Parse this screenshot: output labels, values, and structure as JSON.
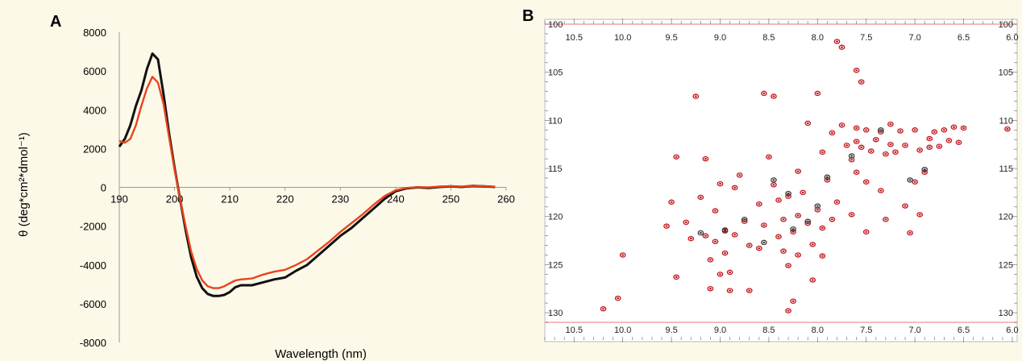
{
  "chart_data": [
    {
      "panel": "A",
      "type": "line",
      "xlabel": "Wavelength (nm)",
      "ylabel": "θ (deg*cm²*dmol⁻¹)",
      "xlim": [
        190,
        260
      ],
      "ylim": [
        -8000,
        8000
      ],
      "x_ticks": [
        "190",
        "200",
        "210",
        "220",
        "230",
        "240",
        "250",
        "260"
      ],
      "y_ticks": [
        "8000",
        "6000",
        "4000",
        "2000",
        "0",
        "-2000",
        "-4000",
        "-6000",
        "-8000"
      ],
      "series": [
        {
          "color": "#111111",
          "points": [
            [
              190,
              2100
            ],
            [
              191,
              2500
            ],
            [
              192,
              3200
            ],
            [
              193,
              4200
            ],
            [
              194,
              5000
            ],
            [
              195,
              6100
            ],
            [
              196,
              6900
            ],
            [
              197,
              6600
            ],
            [
              198,
              4800
            ],
            [
              199,
              2800
            ],
            [
              200,
              1000
            ],
            [
              201,
              -600
            ],
            [
              202,
              -2200
            ],
            [
              203,
              -3600
            ],
            [
              204,
              -4600
            ],
            [
              205,
              -5200
            ],
            [
              206,
              -5500
            ],
            [
              207,
              -5600
            ],
            [
              208,
              -5600
            ],
            [
              209,
              -5550
            ],
            [
              210,
              -5400
            ],
            [
              211,
              -5150
            ],
            [
              212,
              -5050
            ],
            [
              214,
              -5050
            ],
            [
              216,
              -4900
            ],
            [
              218,
              -4750
            ],
            [
              220,
              -4650
            ],
            [
              222,
              -4300
            ],
            [
              224,
              -4000
            ],
            [
              226,
              -3500
            ],
            [
              228,
              -3000
            ],
            [
              230,
              -2500
            ],
            [
              232,
              -2100
            ],
            [
              234,
              -1600
            ],
            [
              236,
              -1100
            ],
            [
              238,
              -600
            ],
            [
              240,
              -200
            ],
            [
              242,
              -50
            ],
            [
              244,
              0
            ],
            [
              246,
              -30
            ],
            [
              248,
              20
            ],
            [
              250,
              50
            ],
            [
              252,
              20
            ],
            [
              254,
              80
            ],
            [
              256,
              50
            ],
            [
              258,
              20
            ]
          ]
        },
        {
          "color": "#e8431d",
          "points": [
            [
              190,
              2400
            ],
            [
              191,
              2300
            ],
            [
              192,
              2500
            ],
            [
              193,
              3200
            ],
            [
              194,
              4200
            ],
            [
              195,
              5100
            ],
            [
              196,
              5700
            ],
            [
              197,
              5400
            ],
            [
              198,
              4300
            ],
            [
              199,
              2600
            ],
            [
              200,
              900
            ],
            [
              201,
              -600
            ],
            [
              202,
              -2000
            ],
            [
              203,
              -3300
            ],
            [
              204,
              -4200
            ],
            [
              205,
              -4800
            ],
            [
              206,
              -5100
            ],
            [
              207,
              -5200
            ],
            [
              208,
              -5200
            ],
            [
              209,
              -5100
            ],
            [
              210,
              -4950
            ],
            [
              211,
              -4800
            ],
            [
              212,
              -4750
            ],
            [
              214,
              -4700
            ],
            [
              216,
              -4500
            ],
            [
              218,
              -4350
            ],
            [
              220,
              -4250
            ],
            [
              222,
              -4000
            ],
            [
              224,
              -3700
            ],
            [
              226,
              -3250
            ],
            [
              228,
              -2800
            ],
            [
              230,
              -2300
            ],
            [
              232,
              -1850
            ],
            [
              234,
              -1400
            ],
            [
              236,
              -900
            ],
            [
              238,
              -450
            ],
            [
              240,
              -150
            ],
            [
              242,
              -30
            ],
            [
              244,
              10
            ],
            [
              246,
              0
            ],
            [
              248,
              40
            ],
            [
              250,
              60
            ],
            [
              252,
              40
            ],
            [
              254,
              80
            ],
            [
              256,
              60
            ],
            [
              258,
              30
            ]
          ]
        }
      ]
    },
    {
      "panel": "B",
      "type": "scatter",
      "xlabel": "",
      "ylabel": "",
      "xlim": [
        10.8,
        5.95
      ],
      "ylim": [
        100,
        131
      ],
      "x_ticks": [
        "10.5",
        "10.0",
        "9.5",
        "9.0",
        "8.5",
        "8.0",
        "7.5",
        "7.0",
        "6.5",
        "6.0"
      ],
      "y_ticks": [
        "100",
        "105",
        "110",
        "115",
        "120",
        "125",
        "130"
      ],
      "series": [
        {
          "color": "#c0141a",
          "points": [
            [
              10.2,
              129.6
            ],
            [
              10.05,
              128.5
            ],
            [
              10.0,
              124.0
            ],
            [
              9.55,
              121.0
            ],
            [
              9.5,
              118.5
            ],
            [
              9.45,
              126.3
            ],
            [
              9.45,
              113.8
            ],
            [
              9.35,
              120.6
            ],
            [
              9.3,
              122.3
            ],
            [
              9.25,
              107.5
            ],
            [
              9.2,
              118.0
            ],
            [
              9.15,
              114.0
            ],
            [
              9.15,
              122.0
            ],
            [
              9.1,
              124.5
            ],
            [
              9.1,
              127.5
            ],
            [
              9.05,
              119.4
            ],
            [
              9.05,
              122.6
            ],
            [
              9.0,
              116.6
            ],
            [
              9.0,
              126.0
            ],
            [
              8.95,
              121.5
            ],
            [
              8.95,
              123.8
            ],
            [
              8.9,
              125.8
            ],
            [
              8.9,
              127.7
            ],
            [
              8.85,
              117.0
            ],
            [
              8.85,
              121.9
            ],
            [
              8.8,
              115.7
            ],
            [
              8.75,
              120.5
            ],
            [
              8.7,
              123.0
            ],
            [
              8.7,
              127.7
            ],
            [
              8.6,
              118.7
            ],
            [
              8.6,
              123.3
            ],
            [
              8.55,
              107.2
            ],
            [
              8.55,
              120.9
            ],
            [
              8.5,
              113.8
            ],
            [
              8.45,
              107.5
            ],
            [
              8.45,
              116.7
            ],
            [
              8.4,
              118.3
            ],
            [
              8.4,
              122.1
            ],
            [
              8.35,
              120.3
            ],
            [
              8.35,
              123.6
            ],
            [
              8.3,
              117.9
            ],
            [
              8.3,
              125.1
            ],
            [
              8.3,
              129.8
            ],
            [
              8.25,
              121.6
            ],
            [
              8.25,
              128.8
            ],
            [
              8.2,
              115.3
            ],
            [
              8.2,
              119.9
            ],
            [
              8.2,
              124.0
            ],
            [
              8.15,
              117.5
            ],
            [
              8.1,
              110.3
            ],
            [
              8.1,
              120.7
            ],
            [
              8.05,
              122.9
            ],
            [
              8.05,
              126.6
            ],
            [
              8.0,
              107.2
            ],
            [
              8.0,
              119.3
            ],
            [
              7.95,
              113.3
            ],
            [
              7.95,
              121.2
            ],
            [
              7.95,
              124.1
            ],
            [
              7.9,
              116.2
            ],
            [
              7.85,
              111.3
            ],
            [
              7.85,
              120.3
            ],
            [
              7.8,
              118.5
            ],
            [
              7.8,
              101.8
            ],
            [
              7.75,
              102.4
            ],
            [
              7.75,
              110.5
            ],
            [
              7.7,
              112.6
            ],
            [
              7.65,
              114.1
            ],
            [
              7.65,
              119.8
            ],
            [
              7.6,
              104.8
            ],
            [
              7.6,
              110.8
            ],
            [
              7.6,
              112.2
            ],
            [
              7.6,
              115.4
            ],
            [
              7.55,
              106.0
            ],
            [
              7.55,
              112.8
            ],
            [
              7.5,
              111.0
            ],
            [
              7.5,
              116.4
            ],
            [
              7.5,
              121.6
            ],
            [
              7.45,
              113.2
            ],
            [
              7.4,
              112.0
            ],
            [
              7.35,
              111.2
            ],
            [
              7.35,
              117.3
            ],
            [
              7.3,
              120.3
            ],
            [
              7.3,
              113.5
            ],
            [
              7.25,
              110.4
            ],
            [
              7.25,
              112.5
            ],
            [
              7.2,
              113.3
            ],
            [
              7.15,
              111.1
            ],
            [
              7.1,
              112.6
            ],
            [
              7.1,
              118.9
            ],
            [
              7.05,
              121.7
            ],
            [
              7.0,
              111.0
            ],
            [
              7.0,
              116.4
            ],
            [
              6.95,
              113.1
            ],
            [
              6.95,
              119.8
            ],
            [
              6.9,
              115.4
            ],
            [
              6.85,
              111.9
            ],
            [
              6.85,
              112.8
            ],
            [
              6.8,
              111.2
            ],
            [
              6.75,
              112.7
            ],
            [
              6.7,
              111.0
            ],
            [
              6.65,
              112.1
            ],
            [
              6.6,
              110.7
            ],
            [
              6.55,
              112.3
            ],
            [
              6.5,
              110.8
            ],
            [
              6.05,
              110.9
            ]
          ]
        },
        {
          "color": "#3a3a3a",
          "points": [
            [
              9.2,
              121.7
            ],
            [
              8.95,
              121.4
            ],
            [
              8.75,
              120.3
            ],
            [
              8.45,
              116.2
            ],
            [
              8.3,
              117.6
            ],
            [
              8.25,
              121.3
            ],
            [
              8.1,
              120.5
            ],
            [
              7.9,
              115.9
            ],
            [
              7.65,
              113.7
            ],
            [
              7.35,
              111.0
            ],
            [
              7.05,
              116.2
            ],
            [
              6.9,
              115.1
            ],
            [
              8.0,
              118.9
            ],
            [
              8.55,
              122.7
            ]
          ]
        }
      ]
    }
  ]
}
